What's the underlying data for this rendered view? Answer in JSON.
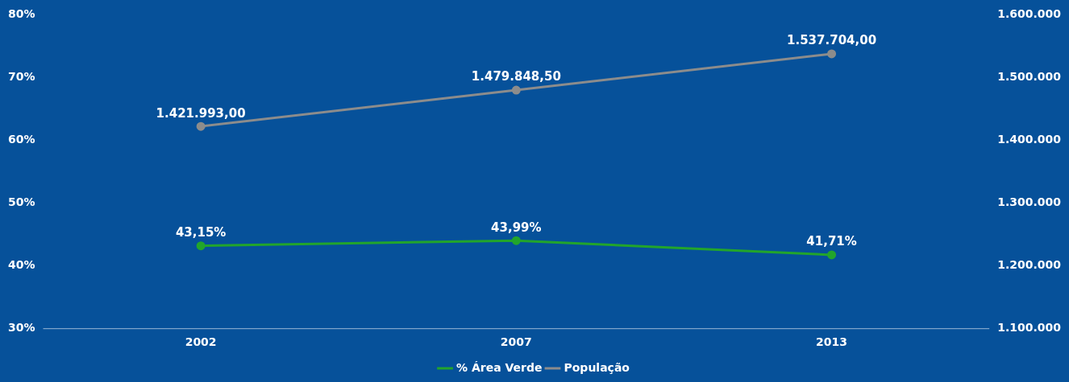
{
  "chart_data": {
    "type": "line",
    "categories": [
      "2002",
      "2007",
      "2013"
    ],
    "series": [
      {
        "name": "% Área Verde",
        "color": "#22a52b",
        "values": [
          43.15,
          43.99,
          41.71
        ],
        "value_labels": [
          "43,15%",
          "43,99%",
          "41,71%"
        ]
      },
      {
        "name": "População",
        "color": "#8c8c8c",
        "axis": "y2",
        "values": [
          1421993,
          1479848.5,
          1537704
        ],
        "value_labels": [
          "1.421.993,00",
          "1.479.848,50",
          "1.537.704,00"
        ]
      }
    ],
    "ylim": [
      30,
      80
    ],
    "yticks": [
      {
        "value": 30,
        "label": "30%"
      },
      {
        "value": 40,
        "label": "40%"
      },
      {
        "value": 50,
        "label": "50%"
      },
      {
        "value": 60,
        "label": "60%"
      },
      {
        "value": 70,
        "label": "70%"
      },
      {
        "value": 80,
        "label": "80%"
      }
    ],
    "y2lim": [
      1100000,
      1600000
    ],
    "y2ticks": [
      {
        "value": 1100000,
        "label": "1.100.000"
      },
      {
        "value": 1200000,
        "label": "1.200.000"
      },
      {
        "value": 1300000,
        "label": "1.300.000"
      },
      {
        "value": 1400000,
        "label": "1.400.000"
      },
      {
        "value": 1500000,
        "label": "1.500.000"
      },
      {
        "value": 1600000,
        "label": "1.600.000"
      }
    ],
    "grid": false,
    "legend": "bottom",
    "marker": "circle",
    "line_style": "solid"
  }
}
